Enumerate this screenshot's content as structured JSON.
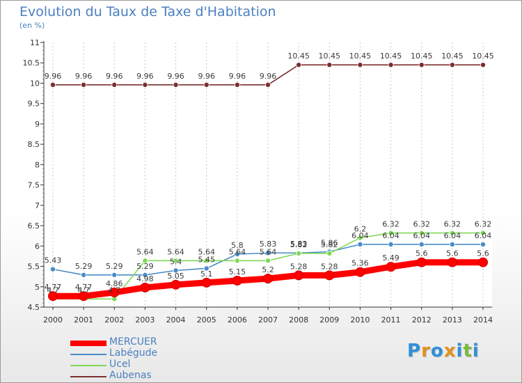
{
  "title": "Evolution du Taux de Taxe d'Habitation",
  "subtitle": "(en %)",
  "brand": "Proxiti",
  "chart_data": {
    "type": "line",
    "x": [
      "2000",
      "2001",
      "2002",
      "2003",
      "2004",
      "2005",
      "2006",
      "2007",
      "2008",
      "2009",
      "2010",
      "2011",
      "2012",
      "2013",
      "2014"
    ],
    "ylim": [
      4.5,
      11
    ],
    "yticks": [
      4.5,
      5,
      5.5,
      6,
      6.5,
      7,
      7.5,
      8,
      8.5,
      9,
      9.5,
      10,
      10.5,
      11
    ],
    "ytick_labels": [
      "4.5",
      "5",
      "5.5",
      "6",
      "6.5",
      "7",
      "7.5",
      "8",
      "8.5",
      "9",
      "9.5",
      "10",
      "10.5",
      "11"
    ],
    "grid": "vertical dashed",
    "legend_position": "bottom-left",
    "series": [
      {
        "name": "MERCUER",
        "color": "#ff0000",
        "values": [
          4.77,
          4.77,
          4.86,
          4.98,
          5.05,
          5.1,
          5.15,
          5.2,
          5.28,
          5.28,
          5.36,
          5.49,
          5.6,
          5.6,
          5.6
        ],
        "labels": [
          "4.77",
          "4.77",
          "4.86",
          "4.98",
          "5.05",
          "5.1",
          "5.15",
          "5.2",
          "5.28",
          "5.28",
          "5.36",
          "5.49",
          "5.6",
          "5.6",
          "5.6"
        ]
      },
      {
        "name": "Labégude",
        "color": "#4a8cc8",
        "values": [
          5.43,
          5.29,
          5.29,
          5.29,
          5.4,
          5.45,
          5.8,
          5.83,
          5.83,
          5.86,
          6.04,
          6.04,
          6.04,
          6.04,
          6.04
        ],
        "labels": [
          "5.43",
          "5.29",
          "5.29",
          "5.29",
          "5.4",
          "5.45",
          "5.8",
          "5.83",
          "5.83",
          "5.86",
          "6.04",
          "6.04",
          "6.04",
          "6.04",
          "6.04"
        ]
      },
      {
        "name": "Ucel",
        "color": "#7ed957",
        "values": [
          4.7,
          4.7,
          4.7,
          5.64,
          5.64,
          5.64,
          5.64,
          5.64,
          5.82,
          5.82,
          6.2,
          6.32,
          6.32,
          6.32,
          6.32
        ],
        "labels": [
          "4.7",
          "4.7",
          "4.7",
          "5.64",
          "5.64",
          "5.64",
          "5.64",
          "5.64",
          "5.82",
          "5.82",
          "6.2",
          "6.32",
          "6.32",
          "6.32",
          "6.32"
        ]
      },
      {
        "name": "Aubenas",
        "color": "#7b2f2f",
        "values": [
          9.96,
          9.96,
          9.96,
          9.96,
          9.96,
          9.96,
          9.96,
          9.96,
          10.45,
          10.45,
          10.45,
          10.45,
          10.45,
          10.45,
          10.45
        ],
        "labels": [
          "9.96",
          "9.96",
          "9.96",
          "9.96",
          "9.96",
          "9.96",
          "9.96",
          "9.96",
          "10.45",
          "10.45",
          "10.45",
          "10.45",
          "10.45",
          "10.45",
          "10.45"
        ]
      }
    ]
  }
}
